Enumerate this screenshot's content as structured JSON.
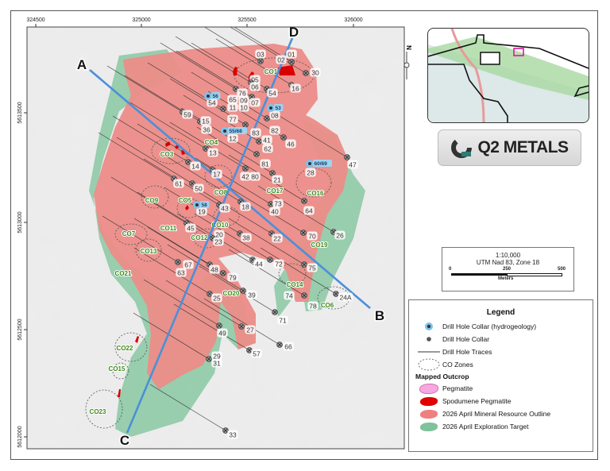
{
  "axes": {
    "easting_ticks": [
      "324500",
      "325000",
      "325500",
      "326000"
    ],
    "northing_ticks": [
      "5613500",
      "5613000",
      "5612500",
      "5612000"
    ]
  },
  "section_lines": [
    {
      "from": "A",
      "to": "B"
    },
    {
      "from": "D",
      "to": "C"
    }
  ],
  "drill_holes": [
    "01",
    "02",
    "03",
    "05",
    "06",
    "07",
    "08",
    "09",
    "10",
    "11",
    "12",
    "13",
    "14",
    "15",
    "16",
    "17",
    "18",
    "19",
    "20",
    "21",
    "22",
    "23",
    "24A",
    "25",
    "26",
    "27",
    "28",
    "29",
    "30",
    "31",
    "33",
    "36",
    "38",
    "39",
    "40",
    "41",
    "42",
    "43",
    "44",
    "45",
    "46",
    "47",
    "48",
    "49",
    "50",
    "54",
    "54",
    "57",
    "59",
    "61",
    "62",
    "63",
    "64",
    "65",
    "66",
    "67",
    "70",
    "71",
    "72",
    "73",
    "74",
    "75",
    "76",
    "77",
    "78",
    "79",
    "80",
    "81",
    "82",
    "83"
  ],
  "hydro_holes": [
    "56",
    "53",
    "55/68",
    "60/69",
    "58"
  ],
  "co_zones": [
    "CO1",
    "CO3",
    "CO4",
    "CO5",
    "CO6",
    "CO7",
    "CO8",
    "CO9",
    "CO10",
    "CO11",
    "CO12",
    "CO13",
    "CO14",
    "CO15",
    "CO16",
    "CO17",
    "CO19",
    "CO20",
    "CO21",
    "CO22",
    "CO23"
  ],
  "north_arrow": "N",
  "logo": {
    "text": "Q2 METALS"
  },
  "scale": {
    "ratio": "1:10,000",
    "projection": "UTM Nad 83, Zone 18",
    "ticks": [
      "0",
      "250",
      "500"
    ],
    "unit": "Meters"
  },
  "legend": {
    "title": "Legend",
    "items": [
      {
        "label": "Drill Hole Collar (hydrogeology)",
        "icon": "hydro-collar"
      },
      {
        "label": "Drill Hole Collar",
        "icon": "collar"
      },
      {
        "label": "Drill Hole Traces",
        "icon": "line"
      },
      {
        "label": "CO Zones",
        "icon": "dashed-ellipse"
      }
    ],
    "section": "Mapped Outcrop",
    "fills": [
      {
        "label": "Pegmatite",
        "color": "#f7a8e0"
      },
      {
        "label": "Spodumene Pegmatite",
        "color": "#e00000"
      },
      {
        "label": "2026 April Mineral Resource Outline",
        "color": "#f08080"
      },
      {
        "label": "2026 April Exploration Target",
        "color": "#7fc29b"
      }
    ]
  },
  "colors": {
    "resource": "#ec8c88",
    "target": "#8fcaa7",
    "section_line": "#4a90d9",
    "co_label": "#3a8a1a",
    "hydro": "#7cc3ec",
    "inset_highlight": "#e0189a"
  }
}
